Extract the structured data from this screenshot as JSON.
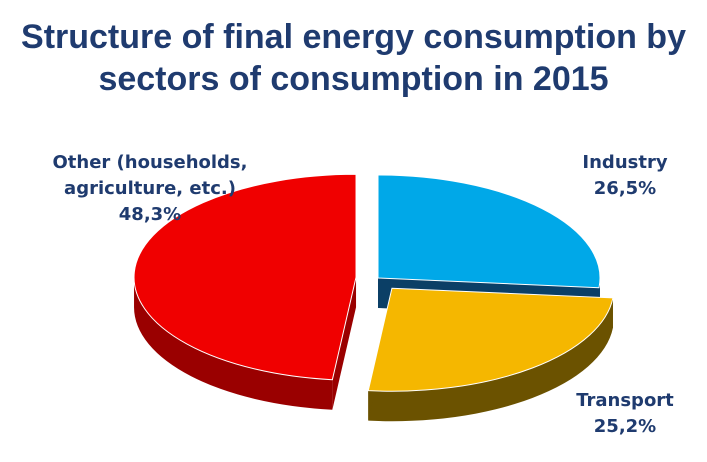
{
  "chart_data": {
    "type": "pie",
    "title_lines": [
      "Structure of final energy consumption by",
      "sectors of consumption in 2015"
    ],
    "slices": [
      {
        "name_lines": [
          "Industry"
        ],
        "value": 26.5,
        "value_label": "26,5%",
        "color": "#00a8e8",
        "side_color": "#0b3f66",
        "exploded": false
      },
      {
        "name_lines": [
          "Transport"
        ],
        "value": 25.2,
        "value_label": "25,2%",
        "color": "#f5b700",
        "side_color": "#6b5200",
        "exploded": true
      },
      {
        "name_lines": [
          "Other (households,",
          "agriculture, etc.)"
        ],
        "value": 48.3,
        "value_label": "48,3%",
        "color": "#f00000",
        "side_color": "#9a0000",
        "exploded": true
      }
    ]
  }
}
